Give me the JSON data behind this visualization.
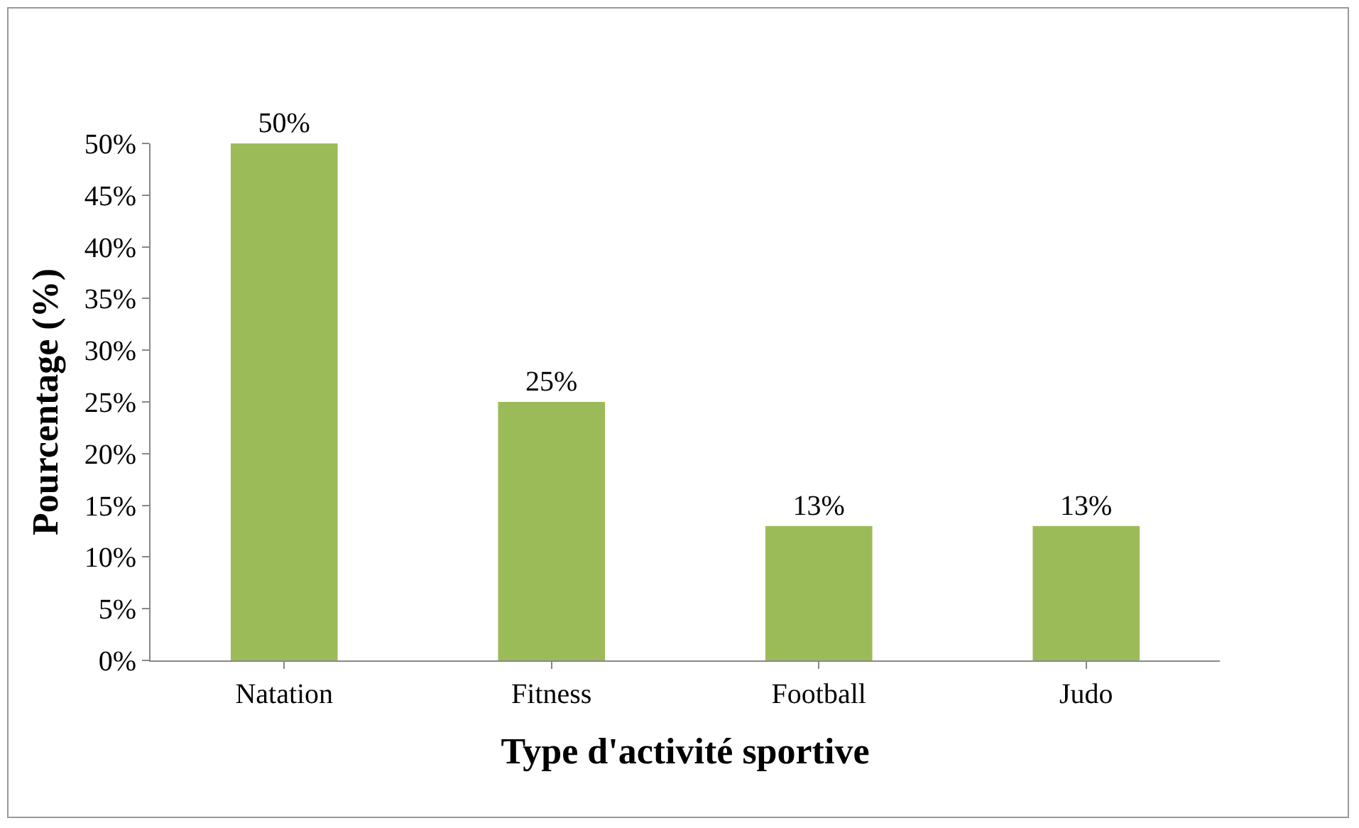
{
  "chart_data": {
    "type": "bar",
    "xlabel": "Type d'activité sportive",
    "ylabel": "Pourcentage (%)",
    "categories": [
      "Natation",
      "Fitness",
      "Football",
      "Judo"
    ],
    "values": [
      50,
      25,
      13,
      13
    ],
    "value_labels": [
      "50%",
      "25%",
      "13%",
      "13%"
    ],
    "color": "#9bbb59",
    "ylim": [
      0,
      50
    ],
    "yticks": [
      {
        "value": 0,
        "label": "0%"
      },
      {
        "value": 5,
        "label": "5%"
      },
      {
        "value": 10,
        "label": "10%"
      },
      {
        "value": 15,
        "label": "15%"
      },
      {
        "value": 20,
        "label": "20%"
      },
      {
        "value": 25,
        "label": "25%"
      },
      {
        "value": 30,
        "label": "30%"
      },
      {
        "value": 35,
        "label": "35%"
      },
      {
        "value": 40,
        "label": "40%"
      },
      {
        "value": 45,
        "label": "45%"
      },
      {
        "value": 50,
        "label": "50%"
      }
    ],
    "grid": false
  }
}
